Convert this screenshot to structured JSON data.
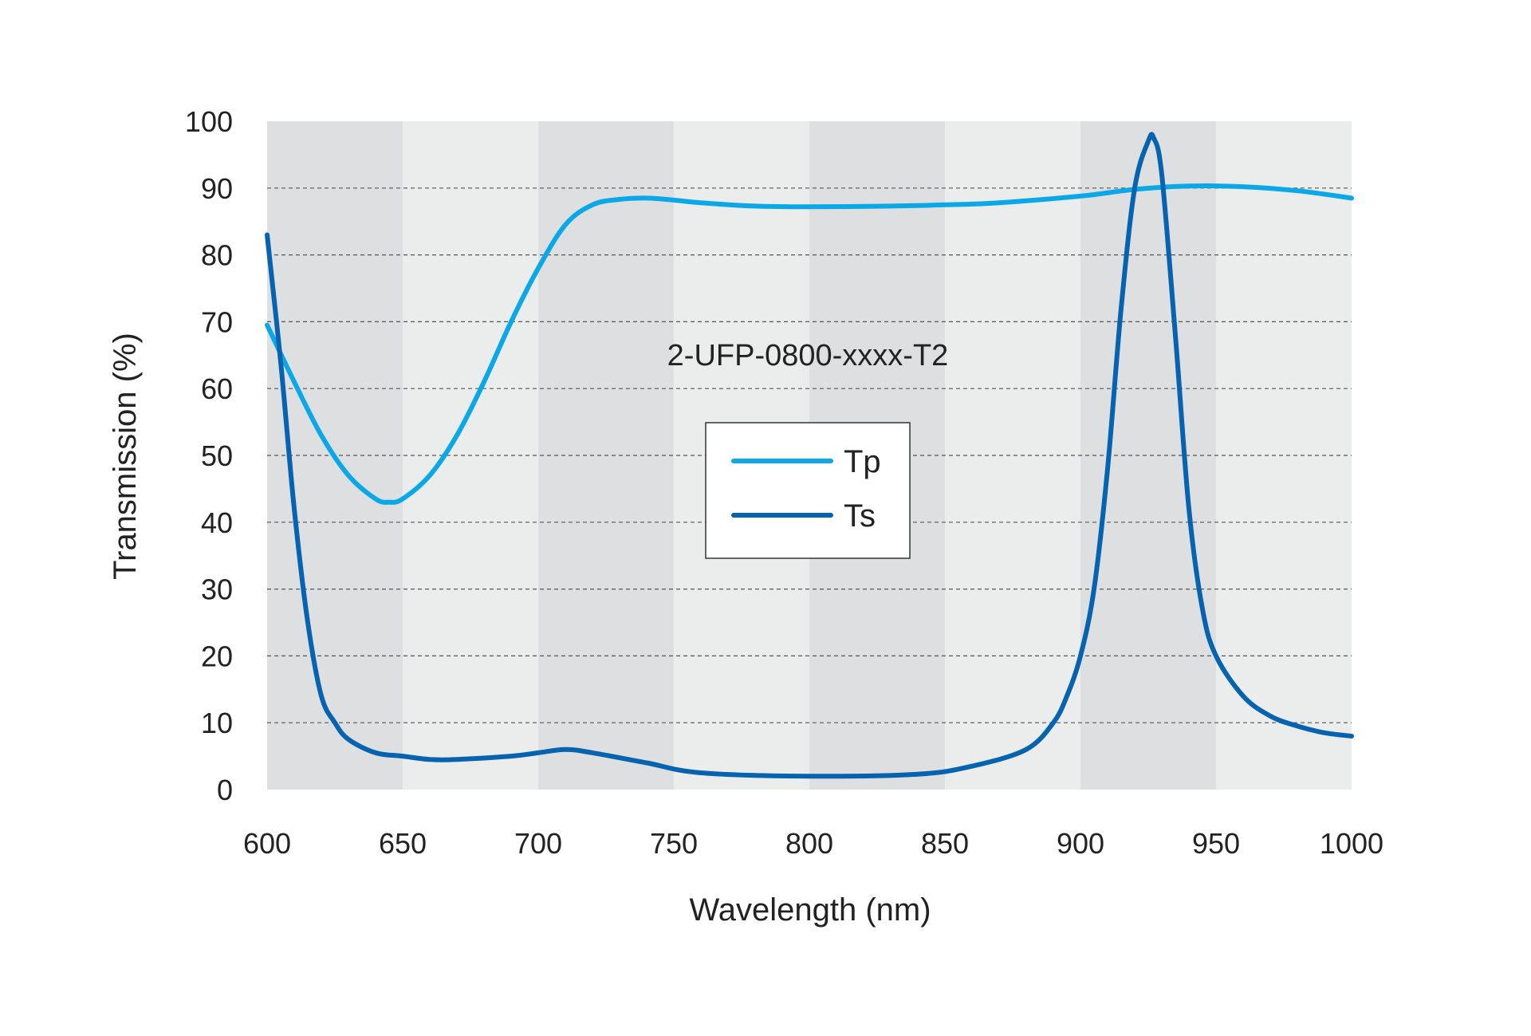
{
  "chart_data": {
    "type": "line",
    "title": "",
    "annotation": "2-UFP-0800-xxxx-T2",
    "xlabel": "Wavelength (nm)",
    "ylabel": "Transmission (%)",
    "xlim": [
      600,
      1000
    ],
    "ylim": [
      0,
      100
    ],
    "xticks": [
      600,
      650,
      700,
      750,
      800,
      850,
      900,
      950,
      1000
    ],
    "yticks": [
      0,
      10,
      20,
      30,
      40,
      50,
      60,
      70,
      80,
      90,
      100
    ],
    "grid": "dashed horizontal",
    "background_bands": "alternating gray bands every 50 nm",
    "legend_position": "center",
    "colors": {
      "band_dark": "#dedfe1",
      "band_light": "#ebecec",
      "grid": "#555555",
      "legend_border": "#333333"
    },
    "series": [
      {
        "name": "Tp",
        "color": "#0aa8e6",
        "x": [
          600,
          610,
          620,
          630,
          640,
          645,
          650,
          660,
          670,
          680,
          690,
          700,
          710,
          720,
          730,
          740,
          750,
          760,
          780,
          800,
          830,
          850,
          870,
          900,
          920,
          940,
          960,
          980,
          1000
        ],
        "y": [
          69.5,
          61,
          53,
          47,
          43.5,
          43,
          43.5,
          47,
          53,
          61,
          70,
          78,
          84.5,
          87.5,
          88.3,
          88.5,
          88.2,
          87.8,
          87.3,
          87.2,
          87.3,
          87.5,
          87.8,
          88.8,
          89.8,
          90.3,
          90.2,
          89.6,
          88.5
        ]
      },
      {
        "name": "Ts",
        "color": "#0563b0",
        "x": [
          600,
          605,
          610,
          615,
          620,
          625,
          630,
          640,
          650,
          660,
          670,
          690,
          700,
          710,
          720,
          740,
          760,
          800,
          840,
          860,
          880,
          890,
          895,
          900,
          905,
          910,
          915,
          920,
          925,
          927,
          930,
          935,
          940,
          945,
          950,
          960,
          970,
          980,
          990,
          1000
        ],
        "y": [
          83,
          64,
          42,
          25,
          14,
          10,
          7.5,
          5.5,
          5,
          4.5,
          4.5,
          5,
          5.5,
          6,
          5.5,
          4,
          2.5,
          2,
          2.3,
          3.5,
          6,
          10,
          14,
          20,
          30,
          48,
          72,
          90,
          97,
          97.5,
          92,
          68,
          42,
          27,
          20,
          14,
          11,
          9.5,
          8.5,
          8
        ]
      }
    ]
  }
}
